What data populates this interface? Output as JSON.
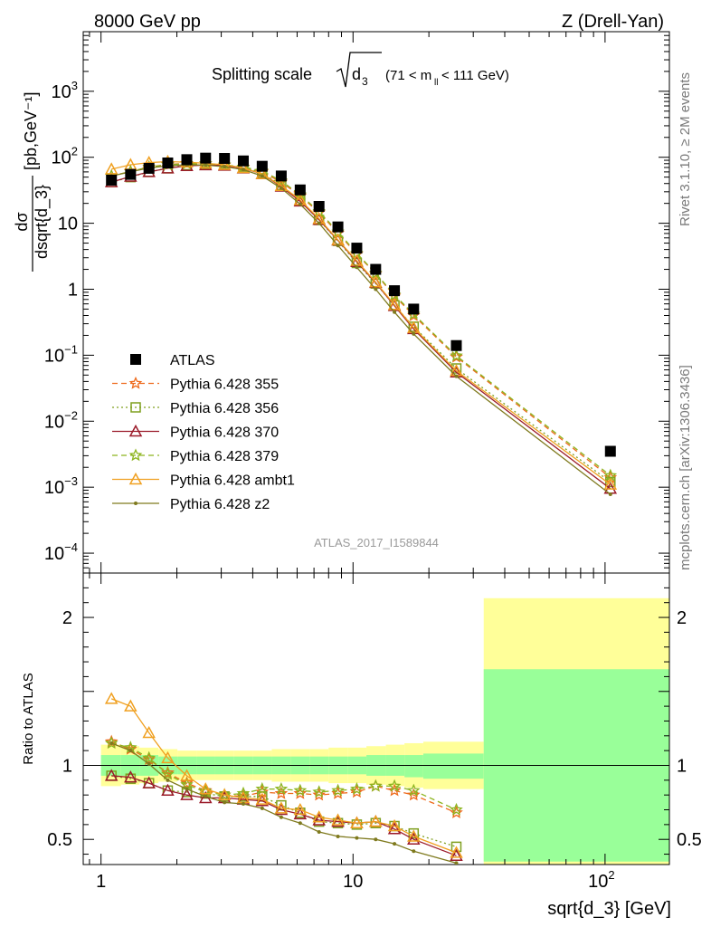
{
  "header": {
    "left": "8000 GeV pp",
    "right": "Z (Drell-Yan)"
  },
  "side_labels": {
    "top": "Rivet 3.1.10, ≥ 2M events",
    "bottom": "mcplots.cern.ch [arXiv:1306.3436]"
  },
  "chart_data": [
    {
      "type": "scatter",
      "title": "Splitting scale √d₃ (71 < mₗₗ < 111 GeV)",
      "title_main": "Splitting scale",
      "title_symbol": "d",
      "title_symbol_sub": "3",
      "title_cut_a": "(71 < m",
      "title_cut_sub": "ll",
      "title_cut_b": " < 111 GeV)",
      "watermark": "ATLAS_2017_I1589844",
      "ylabel_num": "dσ",
      "ylabel_den": "dsqrt{d_3}",
      "ylabel_unit": "[pb,GeV⁻¹]",
      "xscale": "log",
      "yscale": "log",
      "xlim": [
        0.85,
        180
      ],
      "ylim": [
        5e-05,
        8000
      ],
      "ytick_labels": [
        {
          "v": 0.0001,
          "m": "10",
          "e": "−4"
        },
        {
          "v": 0.001,
          "m": "10",
          "e": "−3"
        },
        {
          "v": 0.01,
          "m": "10",
          "e": "−2"
        },
        {
          "v": 0.1,
          "m": "10",
          "e": "−1"
        },
        {
          "v": 1,
          "m": "1",
          "e": ""
        },
        {
          "v": 10,
          "m": "10",
          "e": ""
        },
        {
          "v": 100,
          "m": "10",
          "e": "2"
        },
        {
          "v": 1000,
          "m": "10",
          "e": "3"
        }
      ],
      "x": [
        1.1,
        1.31,
        1.55,
        1.84,
        2.19,
        2.6,
        3.09,
        3.67,
        4.36,
        5.19,
        6.17,
        7.33,
        8.71,
        10.35,
        12.3,
        14.6,
        17.4,
        25.7,
        105
      ],
      "series": [
        {
          "name": "ATLAS",
          "color": "#000000",
          "marker": "square",
          "dash": "",
          "line": false,
          "values": [
            45,
            55,
            68,
            82,
            92,
            97,
            96,
            88,
            73,
            52,
            32,
            18,
            8.8,
            4.2,
            2.0,
            0.95,
            0.5,
            0.14,
            0.0035
          ]
        },
        {
          "name": "Pythia 6.428 355",
          "color": "#ee6a1c",
          "marker": "star",
          "dash": "6,4",
          "line": true,
          "values": [
            52,
            61,
            71,
            78,
            81,
            80,
            76,
            70,
            60,
            42,
            26,
            14.5,
            7.1,
            3.4,
            1.72,
            0.79,
            0.4,
            0.094,
            0.0014
          ]
        },
        {
          "name": "Pythia 6.428 356",
          "color": "#7f9f1f",
          "marker": "square-open",
          "dash": "2,3",
          "line": true,
          "values": [
            42,
            50,
            60,
            68,
            76,
            78,
            76,
            70,
            58,
            38,
            22,
            11.2,
            5.4,
            2.5,
            1.22,
            0.57,
            0.27,
            0.063,
            0.0012
          ]
        },
        {
          "name": "Pythia 6.428 370",
          "color": "#9b1b2a",
          "marker": "triangle-open",
          "dash": "",
          "line": true,
          "values": [
            42,
            51,
            60,
            68,
            74,
            76,
            75,
            68,
            56,
            36,
            21.5,
            11.3,
            5.5,
            2.6,
            1.25,
            0.56,
            0.25,
            0.055,
            0.00095
          ]
        },
        {
          "name": "Pythia 6.428 379",
          "color": "#8cb41e",
          "marker": "star",
          "dash": "6,4",
          "line": true,
          "values": [
            52,
            61,
            71,
            77,
            80,
            80,
            77,
            71,
            62,
            44,
            27,
            15.1,
            7.4,
            3.5,
            1.75,
            0.82,
            0.42,
            0.098,
            0.0015
          ]
        },
        {
          "name": "Pythia 6.428 ambt1",
          "color": "#f0a020",
          "marker": "triangle-open",
          "dash": "",
          "line": true,
          "values": [
            66,
            77,
            83,
            86,
            84,
            81,
            77,
            69,
            56,
            37,
            22.5,
            11.7,
            5.6,
            2.7,
            1.28,
            0.58,
            0.26,
            0.058,
            0.0011
          ]
        },
        {
          "name": "Pythia 6.428 z2",
          "color": "#7f7a1e",
          "marker": "dot",
          "dash": "",
          "line": true,
          "values": [
            52,
            60,
            69,
            74,
            77,
            76,
            72,
            65,
            52,
            34,
            19.5,
            10.0,
            4.6,
            2.15,
            1.0,
            0.45,
            0.21,
            0.048,
            0.00078
          ]
        }
      ]
    },
    {
      "type": "scatter",
      "ylabel": "Ratio to ATLAS",
      "xlabel": "sqrt{d_3} [GeV]",
      "xscale": "log",
      "xlim": [
        0.85,
        180
      ],
      "ylim": [
        0.33,
        2.3
      ],
      "x_ticks": [
        {
          "v": 1,
          "m": "1",
          "e": ""
        },
        {
          "v": 10,
          "m": "10",
          "e": ""
        },
        {
          "v": 100,
          "m": "10",
          "e": "2"
        }
      ],
      "y_ticks": [
        {
          "v": 0.5,
          "label": "0.5"
        },
        {
          "v": 1,
          "label": "1"
        },
        {
          "v": 2,
          "label": "2"
        }
      ],
      "bands": {
        "edges": [
          1,
          1.2,
          1.42,
          1.69,
          2.01,
          2.39,
          2.84,
          3.37,
          4.0,
          4.76,
          5.66,
          6.73,
          8.0,
          9.51,
          11.3,
          13.5,
          16.0,
          19.0,
          33.0,
          180
        ],
        "stat_lo": [
          0.93,
          0.93,
          0.93,
          0.94,
          0.94,
          0.94,
          0.94,
          0.94,
          0.94,
          0.94,
          0.94,
          0.94,
          0.94,
          0.94,
          0.93,
          0.93,
          0.92,
          0.91,
          0.35
        ],
        "stat_hi": [
          1.07,
          1.07,
          1.07,
          1.06,
          1.06,
          1.06,
          1.06,
          1.06,
          1.06,
          1.06,
          1.06,
          1.06,
          1.06,
          1.06,
          1.07,
          1.07,
          1.07,
          1.08,
          1.65
        ],
        "tot_lo": [
          0.86,
          0.87,
          0.88,
          0.89,
          0.9,
          0.9,
          0.9,
          0.9,
          0.9,
          0.89,
          0.89,
          0.89,
          0.88,
          0.88,
          0.87,
          0.86,
          0.85,
          0.84,
          0.33
        ],
        "tot_hi": [
          1.14,
          1.13,
          1.12,
          1.11,
          1.1,
          1.1,
          1.1,
          1.1,
          1.1,
          1.11,
          1.11,
          1.11,
          1.12,
          1.12,
          1.13,
          1.14,
          1.15,
          1.16,
          2.13
        ],
        "stat_color": "#99ff99",
        "tot_color": "#ffff99"
      },
      "x": [
        1.1,
        1.31,
        1.55,
        1.84,
        2.19,
        2.6,
        3.09,
        3.67,
        4.36,
        5.19,
        6.17,
        7.33,
        8.71,
        10.35,
        12.3,
        14.6,
        17.4,
        25.7
      ],
      "series": [
        {
          "name": "Pythia 6.428 355",
          "values": [
            1.16,
            1.11,
            1.04,
            0.95,
            0.88,
            0.83,
            0.8,
            0.79,
            0.82,
            0.81,
            0.81,
            0.8,
            0.81,
            0.82,
            0.86,
            0.83,
            0.8,
            0.68
          ]
        },
        {
          "name": "Pythia 6.428 356",
          "values": [
            0.93,
            0.91,
            0.88,
            0.83,
            0.82,
            0.81,
            0.79,
            0.79,
            0.79,
            0.73,
            0.68,
            0.62,
            0.61,
            0.6,
            0.61,
            0.59,
            0.54,
            0.45
          ]
        },
        {
          "name": "Pythia 6.428 370",
          "values": [
            0.93,
            0.92,
            0.88,
            0.83,
            0.8,
            0.78,
            0.78,
            0.77,
            0.76,
            0.7,
            0.67,
            0.63,
            0.62,
            0.61,
            0.62,
            0.57,
            0.5,
            0.39
          ]
        },
        {
          "name": "Pythia 6.428 379",
          "values": [
            1.15,
            1.12,
            1.05,
            0.94,
            0.87,
            0.82,
            0.8,
            0.81,
            0.84,
            0.84,
            0.83,
            0.82,
            0.83,
            0.84,
            0.86,
            0.86,
            0.83,
            0.7
          ]
        },
        {
          "name": "Pythia 6.428 ambt1",
          "values": [
            1.45,
            1.4,
            1.22,
            1.05,
            0.93,
            0.84,
            0.8,
            0.78,
            0.77,
            0.71,
            0.7,
            0.65,
            0.63,
            0.61,
            0.62,
            0.59,
            0.52,
            0.41
          ]
        },
        {
          "name": "Pythia 6.428 z2",
          "values": [
            1.15,
            1.1,
            1.01,
            0.9,
            0.84,
            0.79,
            0.75,
            0.74,
            0.71,
            0.65,
            0.61,
            0.55,
            0.52,
            0.51,
            0.5,
            0.47,
            0.42,
            0.34
          ]
        }
      ]
    }
  ]
}
